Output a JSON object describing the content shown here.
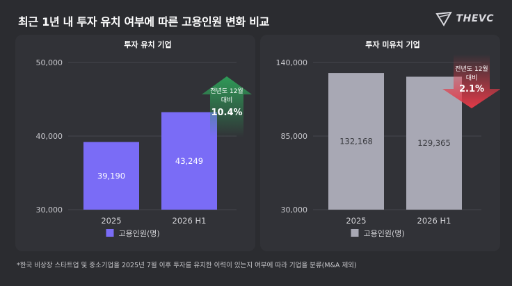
{
  "header": {
    "title": "최근 1년 내 투자 유치 여부에 따른 고용인원 변화 비교",
    "logo_text": "THEVC"
  },
  "footnote": "*한국 비상장 스타트업 및 중소기업을 2025년 7월 이후 투자를 유치한 이력이 있는지 여부에 따라 기업을 분류(M&A 제외)",
  "colors": {
    "background": "#2b2c30",
    "panel": "#313237",
    "funded_bar": "#7a6cf6",
    "unfunded_bar": "#a8a8b4",
    "up_arrow": "#2f9a57",
    "down_arrow": "#e23a48"
  },
  "chart_data": [
    {
      "type": "bar",
      "title": "투자 유치 기업",
      "categories": [
        "2025",
        "2026 H1"
      ],
      "series": [
        {
          "name": "고용인원(명)",
          "values": [
            39190,
            43249
          ]
        }
      ],
      "data_labels": [
        "39,190",
        "43,249"
      ],
      "ylim": [
        30000,
        50000
      ],
      "yticks": [
        "30,000",
        "40,000",
        "50,000"
      ],
      "ytick_values": [
        30000,
        40000,
        50000
      ],
      "legend_position": "bottom",
      "annotation": {
        "direction": "up",
        "line1": "전년도 12월",
        "line2": "대비",
        "value": "10.4%"
      }
    },
    {
      "type": "bar",
      "title": "투자 미유치 기업",
      "categories": [
        "2025",
        "2026 H1"
      ],
      "series": [
        {
          "name": "고용인원(명)",
          "values": [
            132168,
            129365
          ]
        }
      ],
      "data_labels": [
        "132,168",
        "129,365"
      ],
      "ylim": [
        30000,
        140000
      ],
      "yticks": [
        "30,000",
        "85,000",
        "140,000"
      ],
      "ytick_values": [
        30000,
        85000,
        140000
      ],
      "legend_position": "bottom",
      "annotation": {
        "direction": "down",
        "line1": "전년도 12월",
        "line2": "대비",
        "value": "2.1%"
      }
    }
  ]
}
